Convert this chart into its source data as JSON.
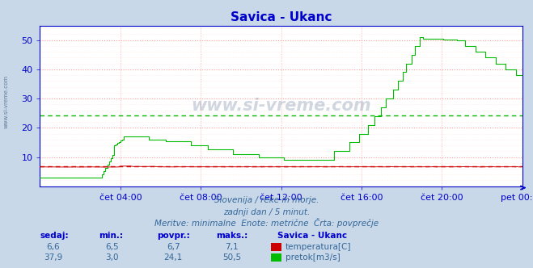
{
  "title": "Savica - Ukanc",
  "background_color": "#c8d8e8",
  "plot_bg_color": "#ffffff",
  "grid_color": "#ff9999",
  "grid_minor_color": "#ffdddd",
  "x_ticks_labels": [
    "čet 04:00",
    "čet 08:00",
    "čet 12:00",
    "čet 16:00",
    "čet 20:00",
    "pet 00:00"
  ],
  "x_ticks_pos": [
    0.1667,
    0.3333,
    0.5,
    0.6667,
    0.8333,
    1.0
  ],
  "ylim": [
    0,
    55
  ],
  "yticks": [
    10,
    20,
    30,
    40,
    50
  ],
  "temp_color": "#cc0000",
  "flow_color": "#00bb00",
  "avg_temp": 6.7,
  "avg_flow": 24.1,
  "subtitle1": "Slovenija / reke in morje.",
  "subtitle2": "zadnji dan / 5 minut.",
  "subtitle3": "Meritve: minimalne  Enote: metrične  Črta: povprečje",
  "legend_title": "Savica - Ukanc",
  "table_headers": [
    "sedaj:",
    "min.:",
    "povpr.:",
    "maks.:"
  ],
  "table_temp": [
    "6,6",
    "6,5",
    "6,7",
    "7,1"
  ],
  "table_flow": [
    "37,9",
    "3,0",
    "24,1",
    "50,5"
  ],
  "watermark": "www.si-vreme.com",
  "watermark_color": "#1a3a6a",
  "left_label": "www.si-vreme.com",
  "axis_color": "#0000cc",
  "title_color": "#0000cc",
  "title_fontsize": 11,
  "tick_fontsize": 8,
  "n_points": 288
}
